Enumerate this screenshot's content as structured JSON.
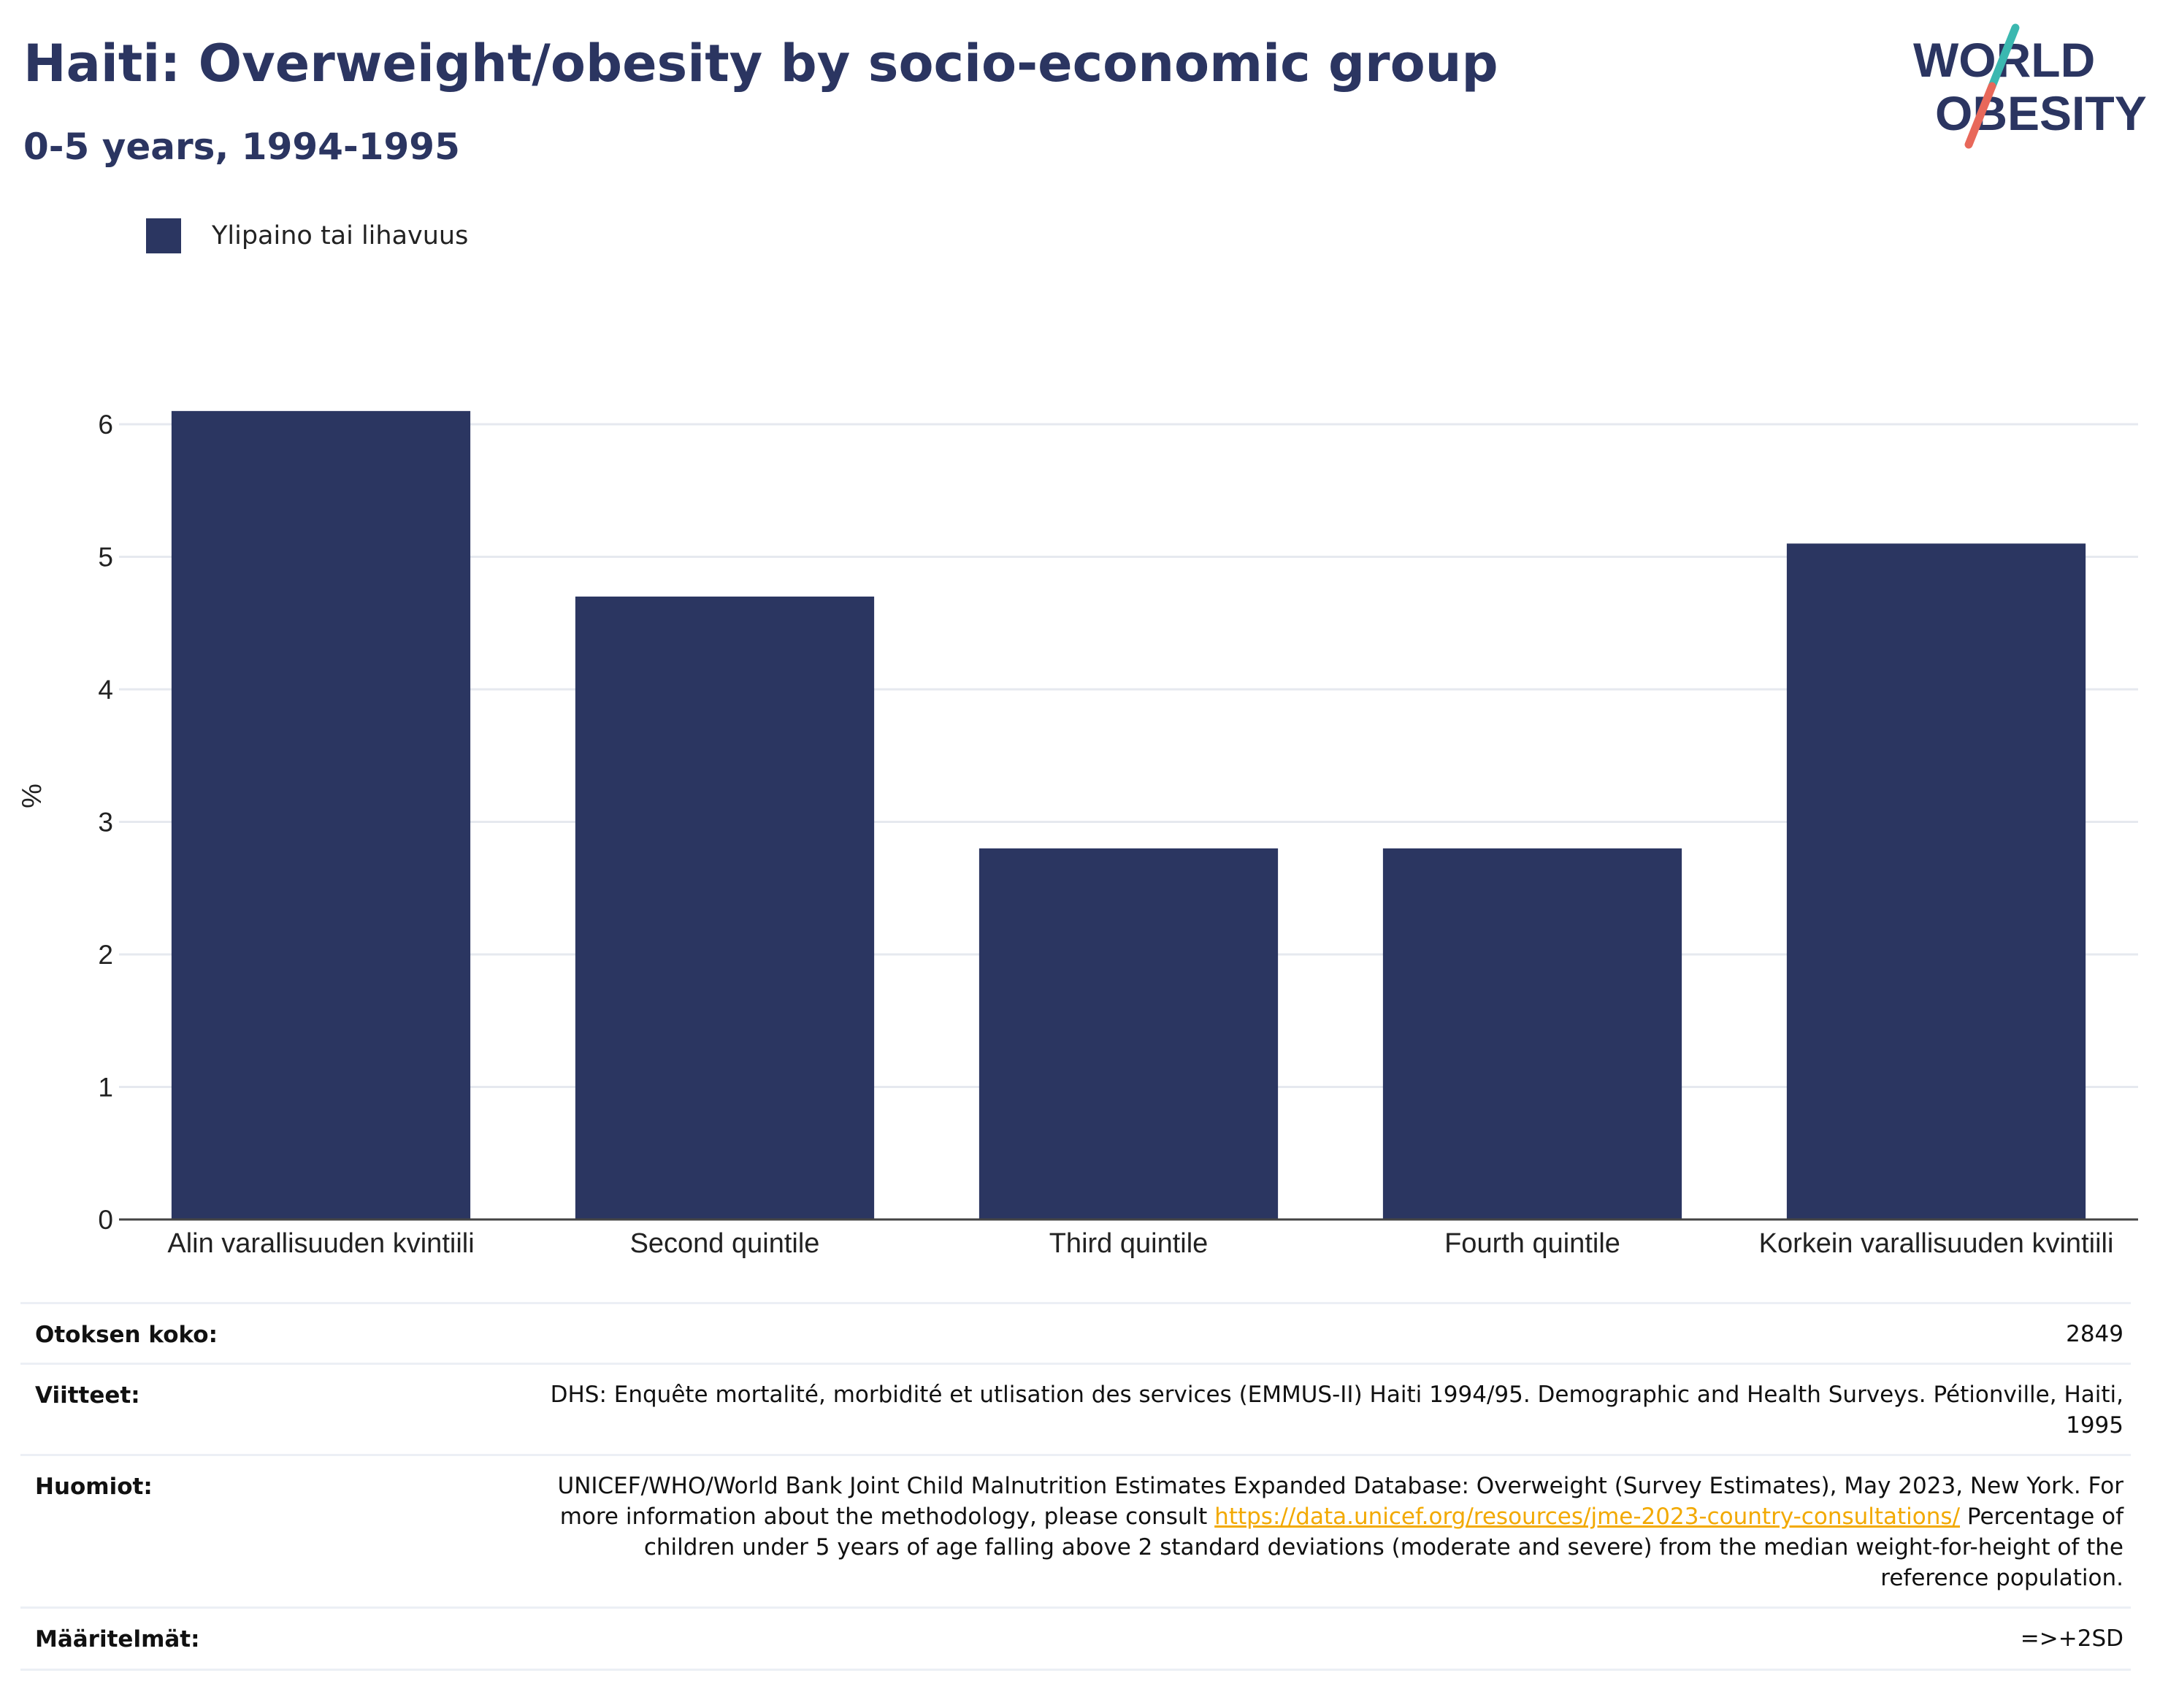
{
  "header": {
    "title": "Haiti: Overweight/obesity by socio-economic group",
    "subtitle": "0-5 years, 1994-1995"
  },
  "logo": {
    "line1": "WORLD",
    "line2": "OBESITY"
  },
  "colors": {
    "bar": "#2b3661",
    "title": "#2b3561",
    "grid": "#e6e9ef",
    "link": "#f2a900"
  },
  "chart_data": {
    "type": "bar",
    "categories": [
      "Alin varallisuuden kvintiili",
      "Second quintile",
      "Third quintile",
      "Fourth quintile",
      "Korkein varallisuuden kvintiili"
    ],
    "series": [
      {
        "name": "Ylipaino tai lihavuus",
        "values": [
          6.1,
          4.7,
          2.8,
          2.8,
          5.1
        ]
      }
    ],
    "ylabel": "%",
    "xlabel": "",
    "ylim": [
      0,
      6.5
    ],
    "yticks": [
      0,
      1,
      2,
      3,
      4,
      5,
      6
    ],
    "grid": true,
    "legend": "top-left"
  },
  "meta": {
    "sample_size_label": "Otoksen koko:",
    "sample_size_value": "2849",
    "references_label": "Viitteet:",
    "references_value": "DHS: Enquête mortalité, morbidité et utlisation des services (EMMUS-II) Haiti 1994/95. Demographic and Health Surveys. Pétionville, Haiti, 1995",
    "notes_label": "Huomiot:",
    "notes_before_link": "UNICEF/WHO/World Bank Joint Child Malnutrition Estimates Expanded Database: Overweight (Survey Estimates), May 2023, New York. For more information about the methodology, please consult ",
    "notes_link": "https://data.unicef.org/resources/jme-2023-country-consultations/",
    "notes_after_link": " Percentage of children under 5 years of age falling above 2 standard deviations (moderate and severe) from the median weight-for-height of the reference population.",
    "definitions_label": "Määritelmät:",
    "definitions_value": "=>+2SD"
  }
}
